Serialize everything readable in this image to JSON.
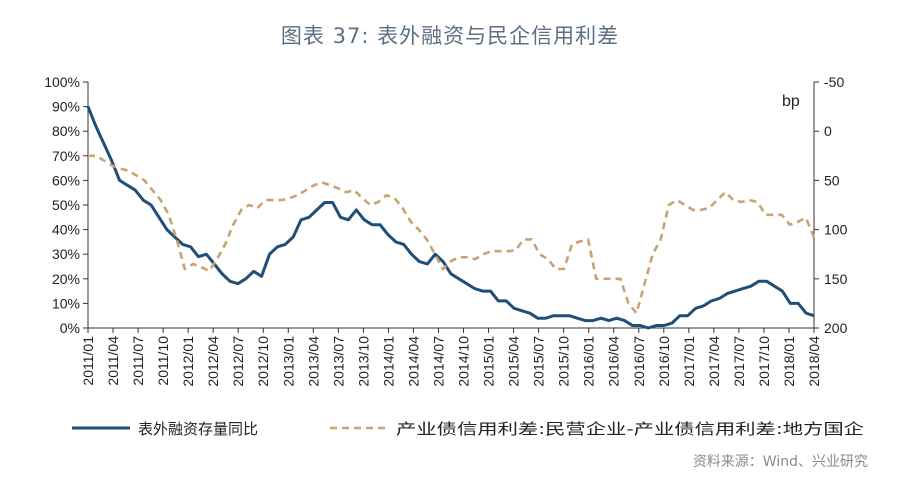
{
  "title": "图表 37:  表外融资与民企信用利差",
  "source": "资料来源：Wind、兴业研究",
  "chart_data": {
    "type": "line",
    "x_labels": [
      "2011/01",
      "2011/04",
      "2011/07",
      "2011/10",
      "2012/01",
      "2012/04",
      "2012/07",
      "2012/10",
      "2013/01",
      "2013/04",
      "2013/07",
      "2013/10",
      "2014/01",
      "2014/04",
      "2014/07",
      "2014/10",
      "2015/01",
      "2015/04",
      "2015/07",
      "2015/10",
      "2016/01",
      "2016/04",
      "2016/07",
      "2016/10",
      "2017/01",
      "2017/04",
      "2017/07",
      "2017/10",
      "2018/01",
      "2018/04"
    ],
    "y_left": {
      "ticks": [
        "0%",
        "10%",
        "20%",
        "30%",
        "40%",
        "50%",
        "60%",
        "70%",
        "80%",
        "90%",
        "100%"
      ],
      "range": [
        0,
        100
      ]
    },
    "y_right": {
      "label": "bp",
      "ticks": [
        "-50",
        "0",
        "50",
        "100",
        "150",
        "200"
      ],
      "range": [
        200,
        -50
      ],
      "reversed": true
    },
    "series": [
      {
        "name": "表外融资存量同比",
        "axis": "left",
        "color": "#1f4e79",
        "style": "solid",
        "values": [
          90,
          82,
          75,
          68,
          60,
          58,
          56,
          52,
          50,
          45,
          40,
          37,
          34,
          33,
          29,
          30,
          26,
          22,
          19,
          18,
          20,
          23,
          21,
          30,
          33,
          34,
          37,
          44,
          45,
          48,
          51,
          51,
          45,
          44,
          48,
          44,
          42,
          42,
          38,
          35,
          34,
          30,
          27,
          26,
          30,
          27,
          22,
          20,
          18,
          16,
          15,
          15,
          11,
          11,
          8,
          7,
          6,
          4,
          4,
          5,
          5,
          5,
          4,
          3,
          3,
          4,
          3,
          4,
          3,
          1,
          1,
          0,
          1,
          1,
          2,
          5,
          5,
          8,
          9,
          11,
          12,
          14,
          15,
          16,
          17,
          19,
          19,
          17,
          15,
          10,
          10,
          6,
          5
        ]
      },
      {
        "name": "产业债信用利差:民营企业-产业债信用利差:地方国企",
        "axis": "right",
        "color": "#c9a472",
        "style": "dashed",
        "values": [
          25,
          25,
          30,
          35,
          38,
          40,
          45,
          50,
          60,
          70,
          85,
          110,
          140,
          135,
          138,
          142,
          130,
          115,
          95,
          80,
          75,
          78,
          70,
          70,
          70,
          68,
          65,
          60,
          55,
          52,
          55,
          58,
          62,
          60,
          68,
          75,
          72,
          65,
          68,
          78,
          92,
          100,
          110,
          125,
          140,
          132,
          128,
          128,
          130,
          125,
          122,
          122,
          122,
          121,
          110,
          110,
          125,
          130,
          140,
          140,
          115,
          112,
          110,
          150,
          150,
          150,
          150,
          175,
          185,
          155,
          125,
          110,
          75,
          70,
          75,
          80,
          80,
          78,
          70,
          62,
          70,
          72,
          70,
          72,
          85,
          85,
          85,
          95,
          92,
          88,
          108
        ]
      }
    ]
  }
}
